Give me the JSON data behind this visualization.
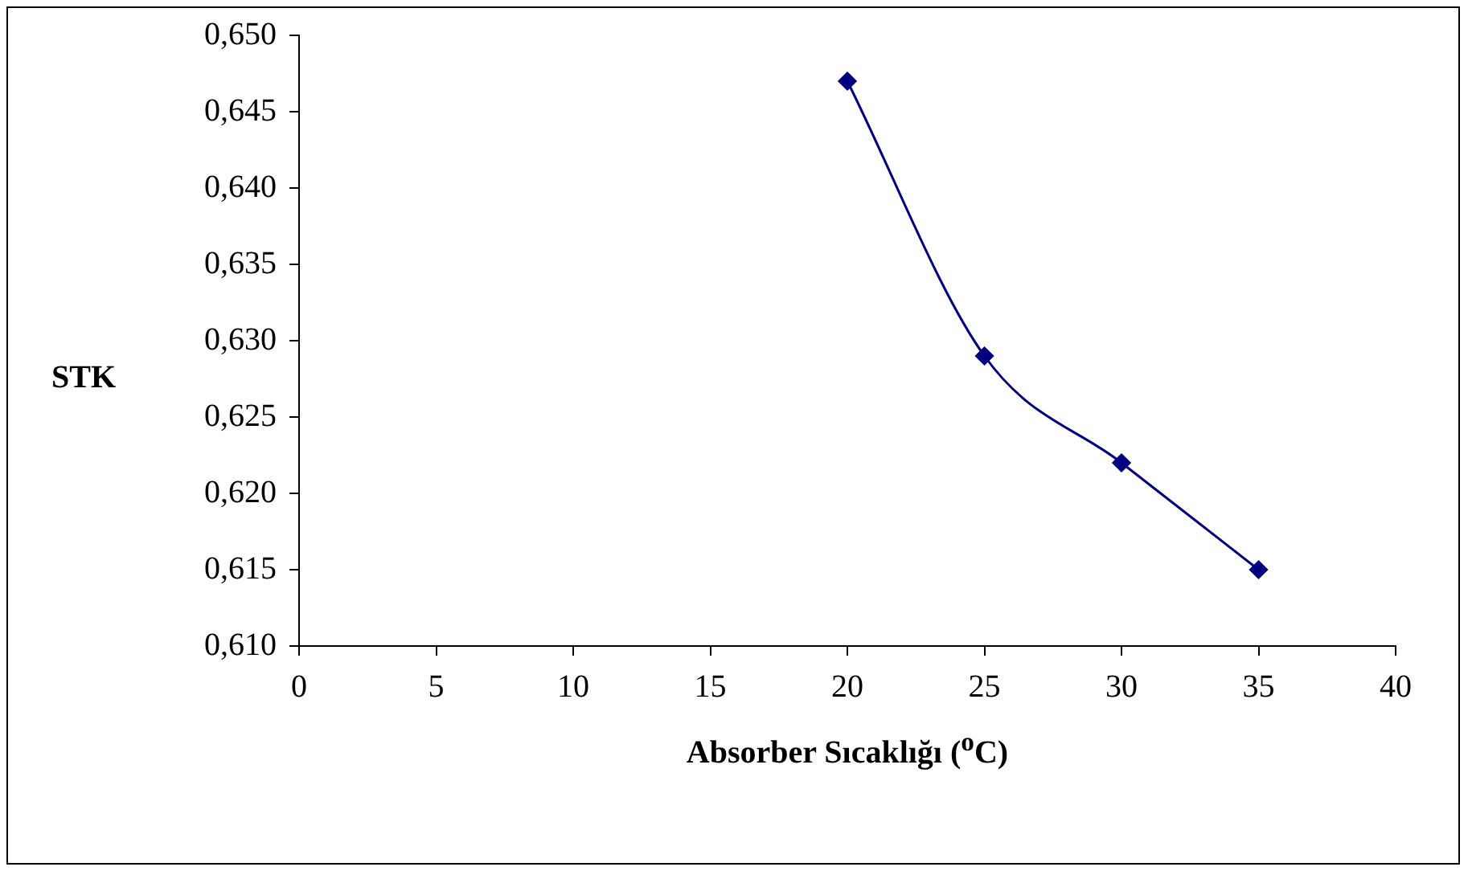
{
  "chart_data": {
    "type": "line",
    "xlabel": "Absorber Sıcaklığı ($^{o}$C)",
    "ylabel": "STK",
    "x": [
      20,
      25,
      30,
      35
    ],
    "series": [
      {
        "color": "#000080",
        "values": [
          0.647,
          0.629,
          0.622,
          0.615
        ]
      }
    ],
    "xlim": [
      0,
      40
    ],
    "xticks": [
      0,
      5,
      10,
      15,
      20,
      25,
      30,
      35,
      40
    ],
    "ylim": [
      0.61,
      0.65
    ],
    "yticks": [
      {
        "value": 0.61,
        "label": "0,610"
      },
      {
        "value": 0.615,
        "label": "0,615"
      },
      {
        "value": 0.62,
        "label": "0,620"
      },
      {
        "value": 0.625,
        "label": "0,625"
      },
      {
        "value": 0.63,
        "label": "0,630"
      },
      {
        "value": 0.635,
        "label": "0,635"
      },
      {
        "value": 0.64,
        "label": "0,640"
      },
      {
        "value": 0.645,
        "label": "0,645"
      },
      {
        "value": 0.65,
        "label": "0,650"
      }
    ],
    "grid": false,
    "legend": false,
    "marker": "diamond",
    "line_style": "solid"
  }
}
